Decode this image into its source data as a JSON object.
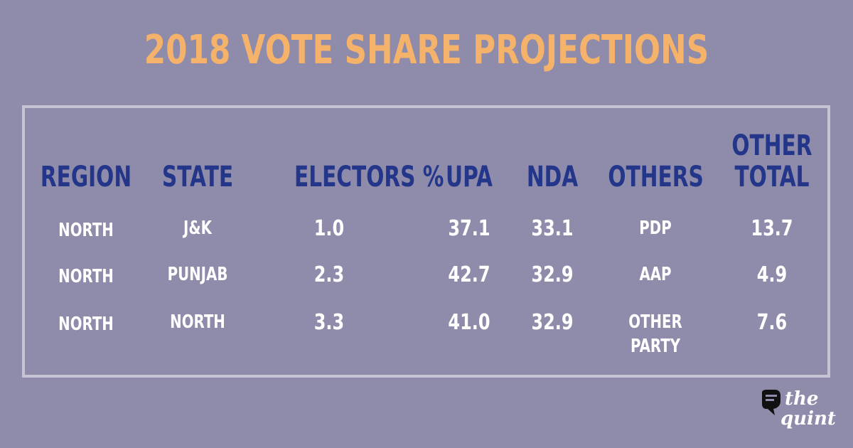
{
  "title": "2018 VOTE SHARE PROJECTIONS",
  "brand": {
    "line1": "the",
    "line2": "quint"
  },
  "colors": {
    "background": "#8e8bab",
    "title": "#f4b26b",
    "header": "#23368a",
    "cell": "#ffffff",
    "frame": "#c6c4d4"
  },
  "chart_data": {
    "type": "table",
    "title": "2018 VOTE SHARE PROJECTIONS",
    "columns": [
      "REGION",
      "STATE",
      "ELECTORS %",
      "UPA",
      "NDA",
      "OTHERS",
      "OTHER TOTAL"
    ],
    "header": {
      "region": "REGION",
      "state": "STATE",
      "electors": "ELECTORS %",
      "upa": "UPA",
      "nda": "NDA",
      "others": "OTHERS",
      "other_total_1": "OTHER",
      "other_total_2": "TOTAL"
    },
    "rows": [
      {
        "region": "NORTH",
        "state": "J&K",
        "electors": "1.0",
        "upa": "37.1",
        "nda": "33.1",
        "others": "PDP",
        "others_2": "",
        "other_total": "13.7"
      },
      {
        "region": "NORTH",
        "state": "PUNJAB",
        "electors": "2.3",
        "upa": "42.7",
        "nda": "32.9",
        "others": "AAP",
        "others_2": "",
        "other_total": "4.9"
      },
      {
        "region": "NORTH",
        "state": "NORTH",
        "electors": "3.3",
        "upa": "41.0",
        "nda": "32.9",
        "others": "OTHER",
        "others_2": "PARTY",
        "other_total": "7.6"
      }
    ]
  }
}
